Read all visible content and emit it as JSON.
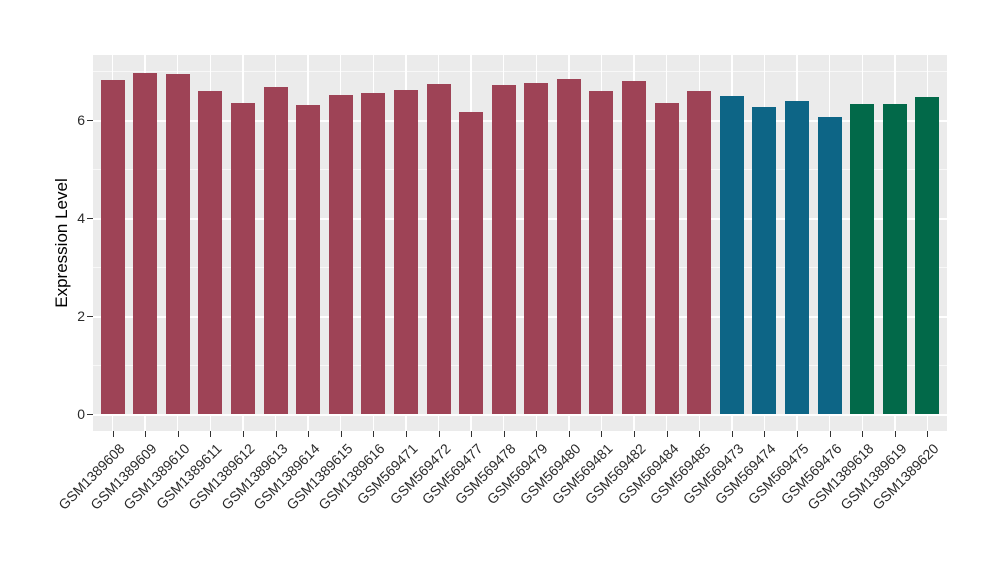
{
  "chart_data": {
    "type": "bar",
    "title": "",
    "xlabel": "",
    "ylabel": "Expression Level",
    "ylim": [
      -0.35,
      7.33
    ],
    "yticks": [
      0,
      2,
      4,
      6
    ],
    "yticks_minor": [
      1,
      3,
      5,
      7
    ],
    "grid": "on",
    "legend_position": "none",
    "panel_background": "#EBEBEB",
    "gridline_color": "#FFFFFF",
    "figure_background": "#FFFFFF",
    "axis_text_color": "#2b2b2b",
    "tick_mark_color": "#333333",
    "categories": [
      "GSM1389608",
      "GSM1389609",
      "GSM1389610",
      "GSM1389611",
      "GSM1389612",
      "GSM1389613",
      "GSM1389614",
      "GSM1389615",
      "GSM1389616",
      "GSM569471",
      "GSM569472",
      "GSM569477",
      "GSM569478",
      "GSM569479",
      "GSM569480",
      "GSM569481",
      "GSM569482",
      "GSM569484",
      "GSM569485",
      "GSM569473",
      "GSM569474",
      "GSM569475",
      "GSM569476",
      "GSM1389618",
      "GSM1389619",
      "GSM1389620"
    ],
    "values": [
      6.82,
      6.95,
      6.94,
      6.59,
      6.35,
      6.67,
      6.31,
      6.52,
      6.56,
      6.61,
      6.73,
      6.17,
      6.71,
      6.75,
      6.84,
      6.6,
      6.8,
      6.35,
      6.59,
      6.5,
      6.27,
      6.39,
      6.07,
      6.33,
      6.32,
      6.47
    ],
    "groups": [
      "group1",
      "group1",
      "group1",
      "group1",
      "group1",
      "group1",
      "group1",
      "group1",
      "group1",
      "group1",
      "group1",
      "group1",
      "group1",
      "group1",
      "group1",
      "group1",
      "group1",
      "group1",
      "group1",
      "group2",
      "group2",
      "group2",
      "group2",
      "group3",
      "group3",
      "group3"
    ],
    "group_colors": {
      "group1": "#9E4356",
      "group2": "#0D6586",
      "group3": "#026949"
    }
  }
}
